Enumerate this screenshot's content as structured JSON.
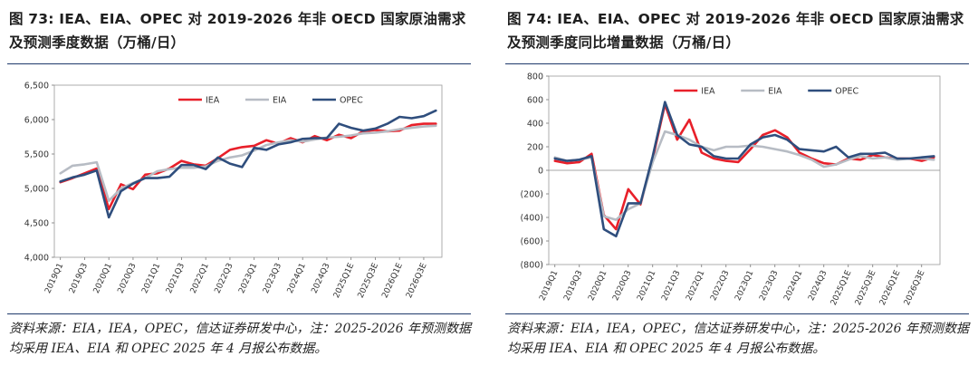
{
  "left": {
    "title": "图 73: IEA、EIA、OPEC 对 2019-2026 年非 OECD 国家原油需求及预测季度数据（万桶/日）",
    "source": "资料来源：EIA，IEA，OPEC，信达证券研发中心，注：2025-2026 年预测数据均采用 IEA、EIA 和 OPEC 2025 年 4 月报公布数据。"
  },
  "right": {
    "title": "图 74: IEA、EIA、OPEC 对 2019-2026 年非 OECD 国家原油需求及预测季度同比增量数据（万桶/日）",
    "source": "资料来源：EIA，IEA，OPEC，信达证券研发中心，注：2025-2026 年预测数据均采用 IEA、EIA 和 OPEC 2025 年 4 月报公布数据。"
  },
  "colors": {
    "IEA": "#e8202a",
    "EIA": "#b7bcc4",
    "OPEC": "#2f4e7d"
  },
  "chart_data": [
    {
      "type": "line",
      "title": "图 73: IEA、EIA、OPEC 对 2019-2026 年非 OECD 国家原油需求及预测季度数据（万桶/日）",
      "ylim": [
        4000,
        6500
      ],
      "yticks": [
        "4,000",
        "4,500",
        "5,000",
        "5,500",
        "6,000",
        "6,500"
      ],
      "legend": "top",
      "x_labels": [
        "2019Q1",
        "2019Q3",
        "2020Q1",
        "2020Q3",
        "2021Q1",
        "2021Q3",
        "2022Q1",
        "2022Q3",
        "2023Q1",
        "2023Q3",
        "2024Q1",
        "2024Q3",
        "2025Q1E",
        "2025Q3E",
        "2026Q1E",
        "2026Q3E"
      ],
      "x": [
        "2019Q1",
        "2019Q2",
        "2019Q3",
        "2019Q4",
        "2020Q1",
        "2020Q2",
        "2020Q3",
        "2020Q4",
        "2021Q1",
        "2021Q2",
        "2021Q3",
        "2021Q4",
        "2022Q1",
        "2022Q2",
        "2022Q3",
        "2022Q4",
        "2023Q1",
        "2023Q2",
        "2023Q3",
        "2023Q4",
        "2024Q1",
        "2024Q2",
        "2024Q3",
        "2024Q4",
        "2025Q1E",
        "2025Q2E",
        "2025Q3E",
        "2025Q4E",
        "2026Q1E",
        "2026Q2E",
        "2026Q3E",
        "2026Q4E"
      ],
      "series": [
        {
          "name": "IEA",
          "values": [
            5090,
            5150,
            5220,
            5290,
            4700,
            5060,
            4990,
            5200,
            5220,
            5290,
            5400,
            5350,
            5330,
            5440,
            5560,
            5600,
            5620,
            5700,
            5650,
            5730,
            5670,
            5760,
            5700,
            5780,
            5730,
            5830,
            5850,
            5830,
            5840,
            5920,
            5940,
            5940
          ]
        },
        {
          "name": "EIA",
          "values": [
            5220,
            5330,
            5350,
            5380,
            4820,
            5000,
            5080,
            5150,
            5250,
            5280,
            5300,
            5300,
            5320,
            5400,
            5450,
            5480,
            5550,
            5630,
            5670,
            5700,
            5680,
            5710,
            5740,
            5750,
            5770,
            5800,
            5810,
            5830,
            5860,
            5880,
            5900,
            5910
          ]
        },
        {
          "name": "OPEC",
          "values": [
            5100,
            5160,
            5200,
            5260,
            4580,
            4960,
            5070,
            5150,
            5150,
            5170,
            5340,
            5340,
            5280,
            5450,
            5360,
            5310,
            5590,
            5560,
            5640,
            5670,
            5720,
            5730,
            5730,
            5940,
            5880,
            5840,
            5870,
            5940,
            6040,
            6020,
            6050,
            6130
          ]
        }
      ]
    },
    {
      "type": "line",
      "title": "图 74: IEA、EIA、OPEC 对 2019-2026 年非 OECD 国家原油需求及预测季度同比增量数据（万桶/日）",
      "ylim": [
        -800,
        800
      ],
      "yticks": [
        "(800)",
        "(600)",
        "(400)",
        "(200)",
        "0",
        "200",
        "400",
        "600",
        "800"
      ],
      "legend": "top",
      "x_labels": [
        "2019Q1",
        "2019Q3",
        "2020Q1",
        "2020Q3",
        "2021Q1",
        "2021Q3",
        "2022Q1",
        "2022Q3",
        "2023Q1",
        "2023Q3",
        "2024Q1",
        "2024Q3",
        "2025Q1E",
        "2025Q3E",
        "2026Q1E",
        "2026Q3E"
      ],
      "x": [
        "2019Q1",
        "2019Q2",
        "2019Q3",
        "2019Q4",
        "2020Q1",
        "2020Q2",
        "2020Q3",
        "2020Q4",
        "2021Q1",
        "2021Q2",
        "2021Q3",
        "2021Q4",
        "2022Q1",
        "2022Q2",
        "2022Q3",
        "2022Q4",
        "2023Q1",
        "2023Q2",
        "2023Q3",
        "2023Q4",
        "2024Q1",
        "2024Q2",
        "2024Q3",
        "2024Q4",
        "2025Q1E",
        "2025Q2E",
        "2025Q3E",
        "2025Q4E",
        "2026Q1E",
        "2026Q2E",
        "2026Q3E",
        "2026Q4E"
      ],
      "series": [
        {
          "name": "IEA",
          "values": [
            80,
            60,
            70,
            140,
            -380,
            -500,
            -160,
            -290,
            100,
            560,
            260,
            430,
            150,
            100,
            80,
            70,
            180,
            300,
            340,
            280,
            150,
            100,
            60,
            50,
            100,
            90,
            130,
            110,
            100,
            100,
            80,
            110
          ]
        },
        {
          "name": "EIA",
          "values": [
            110,
            80,
            90,
            110,
            -390,
            -420,
            -330,
            -280,
            70,
            330,
            300,
            260,
            200,
            170,
            200,
            200,
            210,
            200,
            180,
            160,
            130,
            90,
            30,
            50,
            90,
            120,
            100,
            110,
            90,
            100,
            100,
            90
          ]
        },
        {
          "name": "OPEC",
          "values": [
            100,
            80,
            90,
            120,
            -500,
            -560,
            -280,
            -280,
            120,
            580,
            300,
            220,
            200,
            120,
            100,
            100,
            220,
            280,
            300,
            260,
            180,
            170,
            160,
            200,
            110,
            140,
            140,
            150,
            100,
            100,
            110,
            120
          ]
        }
      ]
    }
  ]
}
